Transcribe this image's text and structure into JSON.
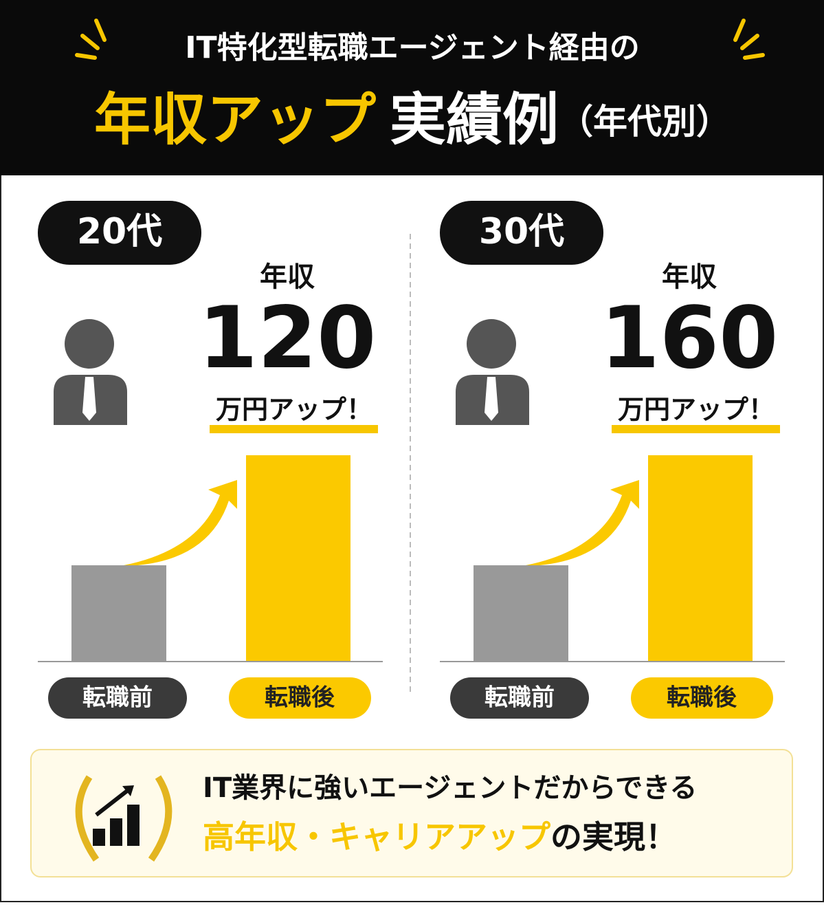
{
  "header": {
    "line1": "IT特化型転職エージェント経由の",
    "highlight": "年収アップ",
    "title": "実績例",
    "suffix": "（年代別）"
  },
  "panels": [
    {
      "age": "20代",
      "label": "年収",
      "amount": 120,
      "unit": "万円アップ！",
      "before": "転職前",
      "after": "転職後"
    },
    {
      "age": "30代",
      "label": "年収",
      "amount": 160,
      "unit": "万円アップ！",
      "before": "転職前",
      "after": "転職後"
    }
  ],
  "footer": {
    "line1": "IT業界に強いエージェントだからできる",
    "highlight": "高年収・キャリアアップ",
    "rest": "の実現！"
  }
}
